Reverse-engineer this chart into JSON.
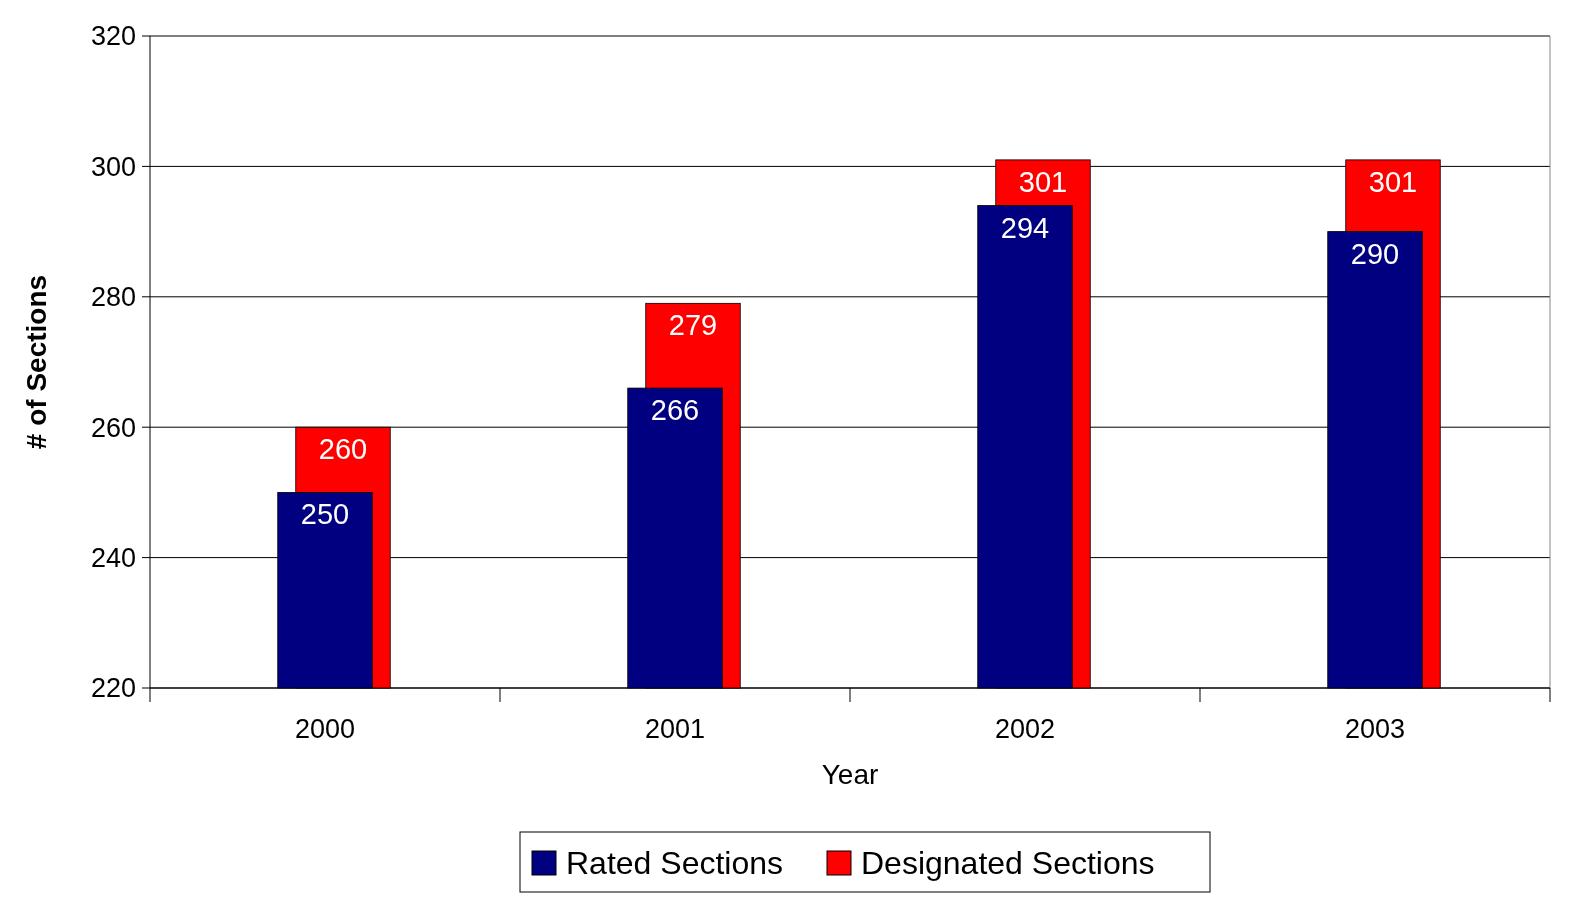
{
  "chart_data": {
    "type": "bar",
    "xlabel": "Year",
    "ylabel": "# of Sections",
    "categories": [
      "2000",
      "2001",
      "2002",
      "2003"
    ],
    "series": [
      {
        "name": "Designated Sections",
        "color": "#ff0000",
        "values": [
          260,
          279,
          301,
          301
        ]
      },
      {
        "name": "Rated Sections",
        "color": "#000080",
        "values": [
          250,
          266,
          294,
          290
        ]
      }
    ],
    "ylim": [
      220,
      320
    ],
    "yticks": [
      220,
      240,
      260,
      280,
      300,
      320
    ],
    "grid": "y",
    "legend": "bottom",
    "data_labels": true
  }
}
